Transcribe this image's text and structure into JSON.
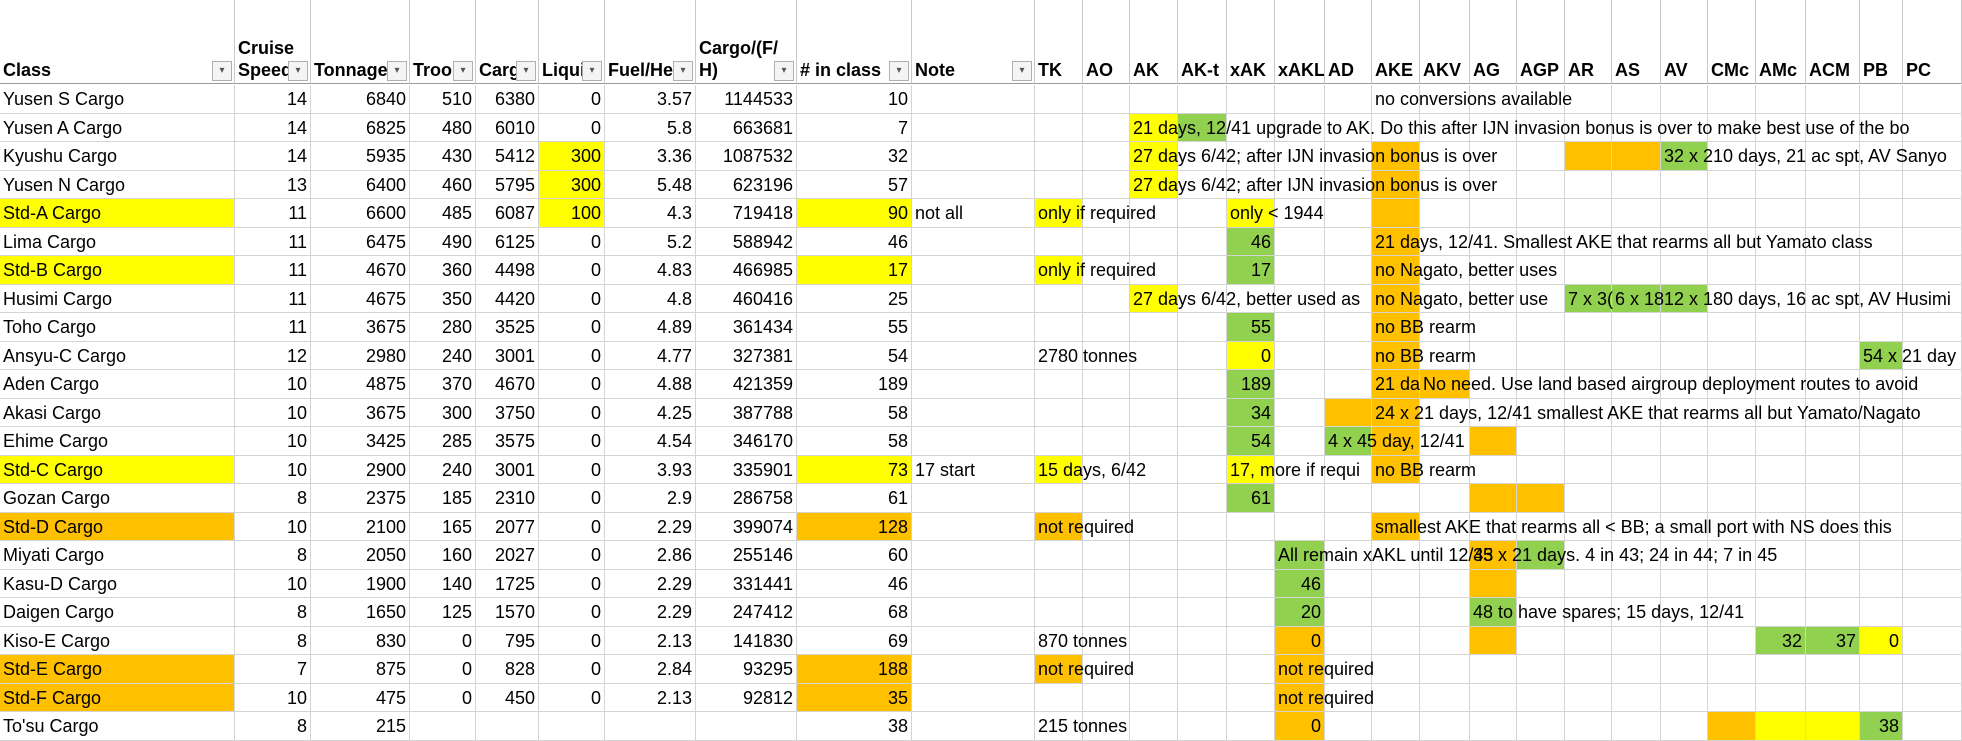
{
  "headers": [
    "Class",
    "Cruise Speed",
    "Tonnage",
    "Troops",
    "Cargo",
    "Liquid",
    "Fuel/Hex",
    "Cargo/(F/H)",
    "# in class",
    "Note",
    "TK",
    "AO",
    "AK",
    "AK-t",
    "xAK",
    "xAKL",
    "AD",
    "AKE",
    "AKV",
    "AG",
    "AGP",
    "AR",
    "AS",
    "AV",
    "CMc",
    "AMc",
    "ACM",
    "PB",
    "PC"
  ],
  "header_display": [
    "Class",
    "Cruise\nSpeed",
    "Tonnage",
    "Troops",
    "Cargo",
    "Liquid",
    "Fuel/Hex",
    "Cargo/(F/\nH)",
    "# in class",
    "Note",
    "TK",
    "AO",
    "AK",
    "AK-t",
    "xAK",
    "xAKL",
    "AD",
    "AKE",
    "AKV",
    "AG",
    "AGP",
    "AR",
    "AS",
    "AV",
    "CMc",
    "AMc",
    "ACM",
    "PB",
    "PC"
  ],
  "rows": [
    {
      "c": [
        "Yusen S Cargo",
        "14",
        "6840",
        "510",
        "6380",
        "0",
        "3.57",
        "1144533",
        "10",
        "",
        "",
        "",
        "",
        "",
        "",
        "",
        "",
        "",
        "",
        "",
        "",
        "",
        "",
        "",
        "",
        "",
        "",
        "",
        ""
      ]
    },
    {
      "c": [
        "Yusen A Cargo",
        "14",
        "6825",
        "480",
        "6010",
        "0",
        "5.8",
        "663681",
        "7",
        "",
        "",
        "",
        "",
        "",
        "",
        "",
        "",
        "",
        "",
        "",
        "",
        "",
        "",
        "",
        "",
        "",
        "",
        "",
        ""
      ]
    },
    {
      "c": [
        "Kyushu Cargo",
        "14",
        "5935",
        "430",
        "5412",
        "300",
        "3.36",
        "1087532",
        "32",
        "",
        "",
        "",
        "",
        "",
        "",
        "",
        "",
        "",
        "",
        "",
        "",
        "",
        "",
        "",
        "",
        "",
        "",
        "",
        ""
      ]
    },
    {
      "c": [
        "Yusen N Cargo",
        "13",
        "6400",
        "460",
        "5795",
        "300",
        "5.48",
        "623196",
        "57",
        "",
        "",
        "",
        "",
        "",
        "",
        "",
        "",
        "",
        "",
        "",
        "",
        "",
        "",
        "",
        "",
        "",
        "",
        "",
        ""
      ]
    },
    {
      "c": [
        "Std-A Cargo",
        "11",
        "6600",
        "485",
        "6087",
        "100",
        "4.3",
        "719418",
        "90",
        "not all",
        "",
        "",
        "",
        "",
        "",
        "",
        "",
        "",
        "",
        "",
        "",
        "",
        "",
        "",
        "",
        "",
        "",
        "",
        ""
      ]
    },
    {
      "c": [
        "Lima Cargo",
        "11",
        "6475",
        "490",
        "6125",
        "0",
        "5.2",
        "588942",
        "46",
        "",
        "",
        "",
        "",
        "",
        "46",
        "",
        "",
        "",
        "",
        "",
        "",
        "",
        "",
        "",
        "",
        "",
        "",
        "",
        ""
      ]
    },
    {
      "c": [
        "Std-B Cargo",
        "11",
        "4670",
        "360",
        "4498",
        "0",
        "4.83",
        "466985",
        "17",
        "",
        "",
        "",
        "",
        "",
        "17",
        "",
        "",
        "",
        "",
        "",
        "",
        "",
        "",
        "",
        "",
        "",
        "",
        "",
        ""
      ]
    },
    {
      "c": [
        "Husimi Cargo",
        "11",
        "4675",
        "350",
        "4420",
        "0",
        "4.8",
        "460416",
        "25",
        "",
        "",
        "",
        "",
        "",
        "",
        "",
        "",
        "",
        "",
        "",
        "",
        "",
        "",
        "",
        "",
        "",
        "",
        "",
        ""
      ]
    },
    {
      "c": [
        "Toho Cargo",
        "11",
        "3675",
        "280",
        "3525",
        "0",
        "4.89",
        "361434",
        "55",
        "",
        "",
        "",
        "",
        "",
        "55",
        "",
        "",
        "",
        "",
        "",
        "",
        "",
        "",
        "",
        "",
        "",
        "",
        "",
        ""
      ]
    },
    {
      "c": [
        "Ansyu-C Cargo",
        "12",
        "2980",
        "240",
        "3001",
        "0",
        "4.77",
        "327381",
        "54",
        "",
        "",
        "",
        "",
        "",
        "0",
        "",
        "",
        "",
        "",
        "",
        "",
        "",
        "",
        "",
        "",
        "",
        "",
        "",
        ""
      ]
    },
    {
      "c": [
        "Aden Cargo",
        "10",
        "4875",
        "370",
        "4670",
        "0",
        "4.88",
        "421359",
        "189",
        "",
        "",
        "",
        "",
        "",
        "189",
        "",
        "",
        "",
        "",
        "",
        "",
        "",
        "",
        "",
        "",
        "",
        "",
        "",
        ""
      ]
    },
    {
      "c": [
        "Akasi Cargo",
        "10",
        "3675",
        "300",
        "3750",
        "0",
        "4.25",
        "387788",
        "58",
        "",
        "",
        "",
        "",
        "",
        "34",
        "",
        "",
        "",
        "",
        "",
        "",
        "",
        "",
        "",
        "",
        "",
        "",
        "",
        ""
      ]
    },
    {
      "c": [
        "Ehime Cargo",
        "10",
        "3425",
        "285",
        "3575",
        "0",
        "4.54",
        "346170",
        "58",
        "",
        "",
        "",
        "",
        "",
        "54",
        "",
        "",
        "",
        "",
        "",
        "",
        "",
        "",
        "",
        "",
        "",
        "",
        "",
        ""
      ]
    },
    {
      "c": [
        "Std-C Cargo",
        "10",
        "2900",
        "240",
        "3001",
        "0",
        "3.93",
        "335901",
        "73",
        "17 start",
        "",
        "",
        "",
        "",
        "",
        "",
        "",
        "",
        "",
        "",
        "",
        "",
        "",
        "",
        "",
        "",
        "",
        "",
        ""
      ]
    },
    {
      "c": [
        "Gozan Cargo",
        "8",
        "2375",
        "185",
        "2310",
        "0",
        "2.9",
        "286758",
        "61",
        "",
        "",
        "",
        "",
        "",
        "61",
        "",
        "",
        "",
        "",
        "",
        "",
        "",
        "",
        "",
        "",
        "",
        "",
        "",
        ""
      ]
    },
    {
      "c": [
        "Std-D Cargo",
        "10",
        "2100",
        "165",
        "2077",
        "0",
        "2.29",
        "399074",
        "128",
        "",
        "",
        "",
        "",
        "",
        "",
        "",
        "",
        "",
        "",
        "",
        "",
        "",
        "",
        "",
        "",
        "",
        "",
        "",
        ""
      ]
    },
    {
      "c": [
        "Miyati Cargo",
        "8",
        "2050",
        "160",
        "2027",
        "0",
        "2.86",
        "255146",
        "60",
        "",
        "",
        "",
        "",
        "",
        "",
        "",
        "",
        "",
        "",
        "",
        "",
        "",
        "",
        "",
        "",
        "",
        "",
        "",
        ""
      ]
    },
    {
      "c": [
        "Kasu-D Cargo",
        "10",
        "1900",
        "140",
        "1725",
        "0",
        "2.29",
        "331441",
        "46",
        "",
        "",
        "",
        "",
        "",
        "",
        "46",
        "",
        "",
        "",
        "",
        "",
        "",
        "",
        "",
        "",
        "",
        "",
        "",
        ""
      ]
    },
    {
      "c": [
        "Daigen Cargo",
        "8",
        "1650",
        "125",
        "1570",
        "0",
        "2.29",
        "247412",
        "68",
        "",
        "",
        "",
        "",
        "",
        "",
        "20",
        "",
        "",
        "",
        "",
        "",
        "",
        "",
        "",
        "",
        "",
        "",
        "",
        ""
      ]
    },
    {
      "c": [
        "Kiso-E Cargo",
        "8",
        "830",
        "0",
        "795",
        "0",
        "2.13",
        "141830",
        "69",
        "",
        "",
        "",
        "",
        "",
        "",
        "0",
        "",
        "",
        "",
        "",
        "",
        "",
        "",
        "",
        "",
        "32",
        "37",
        "0",
        ""
      ]
    },
    {
      "c": [
        "Std-E Cargo",
        "7",
        "875",
        "0",
        "828",
        "0",
        "2.84",
        "93295",
        "188",
        "",
        "",
        "",
        "",
        "",
        "",
        "",
        "",
        "",
        "",
        "",
        "",
        "",
        "",
        "",
        "",
        "",
        "",
        "",
        ""
      ]
    },
    {
      "c": [
        "Std-F Cargo",
        "10",
        "475",
        "0",
        "450",
        "0",
        "2.13",
        "92812",
        "35",
        "",
        "",
        "",
        "",
        "",
        "",
        "",
        "",
        "",
        "",
        "",
        "",
        "",
        "",
        "",
        "",
        "",
        "",
        "",
        ""
      ]
    },
    {
      "c": [
        "To'su Cargo",
        "8",
        "215",
        "",
        "",
        "",
        "",
        "",
        "38",
        "",
        "",
        "",
        "",
        "",
        "",
        "0",
        "",
        "",
        "",
        "",
        "",
        "",
        "",
        "",
        "",
        "",
        "",
        "38",
        ""
      ]
    }
  ],
  "overflow_texts": [
    {
      "row": 0,
      "col": 17,
      "text": "no conversions available"
    },
    {
      "row": 1,
      "col": 12,
      "text": "21 days, 12/41 upgrade to AK. Do this after IJN invasion bonus is over to make best use of the bo"
    },
    {
      "row": 2,
      "col": 12,
      "text": "27 days 6/42; after IJN invasion bonus is over"
    },
    {
      "row": 2,
      "col": 23,
      "text": "32 x 210 days, 21 ac spt, AV Sanyo"
    },
    {
      "row": 3,
      "col": 12,
      "text": "27 days 6/42; after IJN invasion bonus is over"
    },
    {
      "row": 4,
      "col": 10,
      "text": "only if required"
    },
    {
      "row": 4,
      "col": 14,
      "text": "only < 1944"
    },
    {
      "row": 5,
      "col": 17,
      "text": "21 days, 12/41. Smallest AKE that rearms all but Yamato class"
    },
    {
      "row": 6,
      "col": 10,
      "text": "only if required"
    },
    {
      "row": 6,
      "col": 17,
      "text": "no Nagato, better uses"
    },
    {
      "row": 7,
      "col": 12,
      "text": "27 days 6/42, better used as"
    },
    {
      "row": 7,
      "col": 17,
      "text": "no Nagato, better use"
    },
    {
      "row": 7,
      "col": 21,
      "text": "7 x 3("
    },
    {
      "row": 7,
      "col": 22,
      "text": "6 x 18"
    },
    {
      "row": 7,
      "col": 23,
      "text": "12 x 180 days, 16 ac spt, AV Husimi"
    },
    {
      "row": 8,
      "col": 17,
      "text": "no BB rearm"
    },
    {
      "row": 9,
      "col": 10,
      "text": "2780 tonnes"
    },
    {
      "row": 9,
      "col": 17,
      "text": "no BB rearm"
    },
    {
      "row": 9,
      "col": 27,
      "text": "54 x 21 day"
    },
    {
      "row": 10,
      "col": 17,
      "text": "21 da"
    },
    {
      "row": 10,
      "col": 18,
      "text": "No need. Use land based airgroup deployment routes to avoid"
    },
    {
      "row": 11,
      "col": 17,
      "text": "24 x 21 days, 12/41 smallest AKE that rearms all but Yamato/Nagato"
    },
    {
      "row": 12,
      "col": 16,
      "text": "4 x 45 day, 12/41"
    },
    {
      "row": 13,
      "col": 10,
      "text": "15 days, 6/42"
    },
    {
      "row": 13,
      "col": 14,
      "text": "17, more if requi"
    },
    {
      "row": 13,
      "col": 17,
      "text": "no BB rearm"
    },
    {
      "row": 15,
      "col": 10,
      "text": "not required"
    },
    {
      "row": 15,
      "col": 17,
      "text": "smallest AKE that rearms all < BB; a small port with NS does this"
    },
    {
      "row": 16,
      "col": 15,
      "text": "All remain xAKL until 12/43"
    },
    {
      "row": 16,
      "col": 19,
      "text": "35 x 21 days. 4 in 43; 24 in 44; 7 in 45"
    },
    {
      "row": 18,
      "col": 19,
      "text": "48 to have spares; 15 days, 12/41"
    },
    {
      "row": 19,
      "col": 10,
      "text": "870 tonnes"
    },
    {
      "row": 20,
      "col": 10,
      "text": "not required"
    },
    {
      "row": 20,
      "col": 15,
      "text": "not required"
    },
    {
      "row": 21,
      "col": 15,
      "text": "not required"
    },
    {
      "row": 22,
      "col": 10,
      "text": "215 tonnes"
    }
  ],
  "fills": [
    {
      "row": 1,
      "col": 12,
      "color": "#ffff00"
    },
    {
      "row": 1,
      "col": 13,
      "color": "#92d050"
    },
    {
      "row": 2,
      "col": 5,
      "color": "#ffff00"
    },
    {
      "row": 2,
      "col": 12,
      "color": "#ffff00"
    },
    {
      "row": 2,
      "col": 17,
      "color": "#ffc000"
    },
    {
      "row": 2,
      "col": 21,
      "color": "#ffc000"
    },
    {
      "row": 2,
      "col": 22,
      "color": "#ffc000"
    },
    {
      "row": 2,
      "col": 23,
      "color": "#92d050"
    },
    {
      "row": 3,
      "col": 5,
      "color": "#ffff00"
    },
    {
      "row": 3,
      "col": 12,
      "color": "#ffff00"
    },
    {
      "row": 3,
      "col": 17,
      "color": "#ffc000"
    },
    {
      "row": 4,
      "col": 0,
      "color": "#ffff00"
    },
    {
      "row": 4,
      "col": 5,
      "color": "#ffff00"
    },
    {
      "row": 4,
      "col": 8,
      "color": "#ffff00"
    },
    {
      "row": 4,
      "col": 10,
      "color": "#ffff00"
    },
    {
      "row": 4,
      "col": 14,
      "color": "#ffff00"
    },
    {
      "row": 4,
      "col": 17,
      "color": "#ffc000"
    },
    {
      "row": 5,
      "col": 14,
      "color": "#92d050"
    },
    {
      "row": 5,
      "col": 17,
      "color": "#ffc000"
    },
    {
      "row": 6,
      "col": 0,
      "color": "#ffff00"
    },
    {
      "row": 6,
      "col": 8,
      "color": "#ffff00"
    },
    {
      "row": 6,
      "col": 10,
      "color": "#ffff00"
    },
    {
      "row": 6,
      "col": 14,
      "color": "#92d050"
    },
    {
      "row": 6,
      "col": 17,
      "color": "#ffc000"
    },
    {
      "row": 7,
      "col": 12,
      "color": "#ffff00"
    },
    {
      "row": 7,
      "col": 17,
      "color": "#ffc000"
    },
    {
      "row": 7,
      "col": 21,
      "color": "#92d050"
    },
    {
      "row": 7,
      "col": 22,
      "color": "#92d050"
    },
    {
      "row": 7,
      "col": 23,
      "color": "#92d050"
    },
    {
      "row": 8,
      "col": 14,
      "color": "#92d050"
    },
    {
      "row": 8,
      "col": 17,
      "color": "#ffc000"
    },
    {
      "row": 9,
      "col": 14,
      "color": "#ffff00"
    },
    {
      "row": 9,
      "col": 17,
      "color": "#ffc000"
    },
    {
      "row": 9,
      "col": 27,
      "color": "#92d050"
    },
    {
      "row": 10,
      "col": 14,
      "color": "#92d050"
    },
    {
      "row": 10,
      "col": 17,
      "color": "#ffc000"
    },
    {
      "row": 10,
      "col": 18,
      "color": "#ffc000"
    },
    {
      "row": 11,
      "col": 14,
      "color": "#92d050"
    },
    {
      "row": 11,
      "col": 16,
      "color": "#ffc000"
    },
    {
      "row": 11,
      "col": 17,
      "color": "#ffc000"
    },
    {
      "row": 12,
      "col": 14,
      "color": "#92d050"
    },
    {
      "row": 12,
      "col": 16,
      "color": "#92d050"
    },
    {
      "row": 12,
      "col": 17,
      "color": "#ffc000"
    },
    {
      "row": 12,
      "col": 19,
      "color": "#ffc000"
    },
    {
      "row": 13,
      "col": 0,
      "color": "#ffff00"
    },
    {
      "row": 13,
      "col": 8,
      "color": "#ffff00"
    },
    {
      "row": 13,
      "col": 10,
      "color": "#ffff00"
    },
    {
      "row": 13,
      "col": 14,
      "color": "#ffff00"
    },
    {
      "row": 13,
      "col": 17,
      "color": "#ffc000"
    },
    {
      "row": 14,
      "col": 14,
      "color": "#92d050"
    },
    {
      "row": 14,
      "col": 19,
      "color": "#ffc000"
    },
    {
      "row": 14,
      "col": 20,
      "color": "#ffc000"
    },
    {
      "row": 15,
      "col": 0,
      "color": "#ffc000"
    },
    {
      "row": 15,
      "col": 8,
      "color": "#ffc000"
    },
    {
      "row": 15,
      "col": 10,
      "color": "#ffc000"
    },
    {
      "row": 15,
      "col": 17,
      "color": "#ffc000"
    },
    {
      "row": 16,
      "col": 15,
      "color": "#92d050"
    },
    {
      "row": 16,
      "col": 19,
      "color": "#ffc000"
    },
    {
      "row": 16,
      "col": 20,
      "color": "#92d050"
    },
    {
      "row": 17,
      "col": 15,
      "color": "#92d050"
    },
    {
      "row": 17,
      "col": 19,
      "color": "#ffc000"
    },
    {
      "row": 18,
      "col": 15,
      "color": "#92d050"
    },
    {
      "row": 18,
      "col": 19,
      "color": "#92d050"
    },
    {
      "row": 19,
      "col": 15,
      "color": "#ffc000"
    },
    {
      "row": 19,
      "col": 19,
      "color": "#ffc000"
    },
    {
      "row": 19,
      "col": 25,
      "color": "#92d050"
    },
    {
      "row": 19,
      "col": 26,
      "color": "#92d050"
    },
    {
      "row": 19,
      "col": 27,
      "color": "#ffff00"
    },
    {
      "row": 20,
      "col": 0,
      "color": "#ffc000"
    },
    {
      "row": 20,
      "col": 8,
      "color": "#ffc000"
    },
    {
      "row": 20,
      "col": 10,
      "color": "#ffc000"
    },
    {
      "row": 20,
      "col": 15,
      "color": "#ffc000"
    },
    {
      "row": 21,
      "col": 0,
      "color": "#ffc000"
    },
    {
      "row": 21,
      "col": 8,
      "color": "#ffc000"
    },
    {
      "row": 21,
      "col": 15,
      "color": "#ffc000"
    },
    {
      "row": 22,
      "col": 15,
      "color": "#ffc000"
    },
    {
      "row": 22,
      "col": 24,
      "color": "#ffc000"
    },
    {
      "row": 22,
      "col": 25,
      "color": "#ffff00"
    },
    {
      "row": 22,
      "col": 26,
      "color": "#ffff00"
    },
    {
      "row": 22,
      "col": 27,
      "color": "#92d050"
    }
  ],
  "filter_columns": [
    0,
    1,
    2,
    3,
    4,
    5,
    6,
    7,
    8,
    9
  ],
  "icons": {
    "filter": "filter-dropdown-icon",
    "comment": "comment-indicator-icon"
  },
  "colors": {
    "yellow": "#ffff00",
    "orange": "#ffc000",
    "green": "#92d050"
  }
}
